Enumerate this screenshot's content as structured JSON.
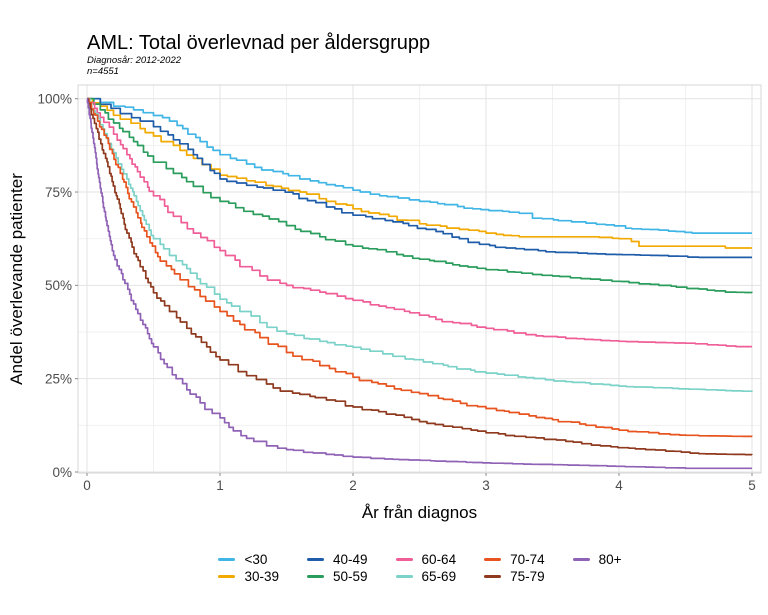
{
  "header": {
    "title": "AML: Total överlevnad per åldersgrupp",
    "subtitle_line1": "Diagnosår: 2012-2022",
    "subtitle_line2": "n=4551"
  },
  "chart_data": {
    "type": "line",
    "subtype": "kaplan-meier-step",
    "title": "AML: Total överlevnad per åldersgrupp",
    "subtitle": "Diagnosår: 2012-2022  n=4551",
    "xlabel": "År från diagnos",
    "ylabel": "Andel överlevande patienter",
    "xlim": [
      0,
      5
    ],
    "ylim": [
      0,
      100
    ],
    "grid": {
      "major": true,
      "minor": true
    },
    "legend_position": "bottom",
    "x_ticks": [
      {
        "value": 0,
        "label": "0"
      },
      {
        "value": 1,
        "label": "1"
      },
      {
        "value": 2,
        "label": "2"
      },
      {
        "value": 3,
        "label": "3"
      },
      {
        "value": 4,
        "label": "4"
      },
      {
        "value": 5,
        "label": "5"
      }
    ],
    "y_ticks": [
      {
        "value": 0,
        "label": "0%"
      },
      {
        "value": 25,
        "label": "25%"
      },
      {
        "value": 50,
        "label": "50%"
      },
      {
        "value": 75,
        "label": "75%"
      },
      {
        "value": 100,
        "label": "100%"
      }
    ],
    "series": [
      {
        "name": "<30",
        "color": "#41B6E6",
        "points": [
          [
            0,
            100
          ],
          [
            0.1,
            99
          ],
          [
            0.2,
            98
          ],
          [
            0.35,
            97
          ],
          [
            0.5,
            95.5
          ],
          [
            0.62,
            94
          ],
          [
            0.72,
            92
          ],
          [
            0.85,
            88.5
          ],
          [
            1,
            85
          ],
          [
            1.2,
            82.5
          ],
          [
            1.4,
            80.5
          ],
          [
            1.6,
            78.5
          ],
          [
            1.8,
            77
          ],
          [
            2,
            75.5
          ],
          [
            2.2,
            74
          ],
          [
            2.5,
            72.5
          ],
          [
            2.9,
            70.5
          ],
          [
            3.25,
            69.3
          ],
          [
            3.35,
            68
          ],
          [
            3.9,
            66.2
          ],
          [
            4.05,
            65.3
          ],
          [
            4.3,
            64.8
          ],
          [
            4.55,
            64
          ],
          [
            5,
            64
          ]
        ]
      },
      {
        "name": "30-39",
        "color": "#F2A900",
        "points": [
          [
            0,
            100
          ],
          [
            0.1,
            98
          ],
          [
            0.25,
            94.5
          ],
          [
            0.4,
            92
          ],
          [
            0.5,
            90
          ],
          [
            0.65,
            87.5
          ],
          [
            0.8,
            84
          ],
          [
            1,
            79.5
          ],
          [
            1.2,
            78
          ],
          [
            1.4,
            76.5
          ],
          [
            1.6,
            75
          ],
          [
            1.8,
            72.5
          ],
          [
            2,
            70.5
          ],
          [
            2.2,
            69
          ],
          [
            2.5,
            66.5
          ],
          [
            2.8,
            65
          ],
          [
            3,
            64
          ],
          [
            3.25,
            63
          ],
          [
            3.8,
            63
          ],
          [
            4,
            62.5
          ],
          [
            4.15,
            60.5
          ],
          [
            4.7,
            60.5
          ],
          [
            4.8,
            60
          ],
          [
            5,
            60
          ]
        ]
      },
      {
        "name": "40-49",
        "color": "#1F5CA9",
        "points": [
          [
            0,
            100
          ],
          [
            0.1,
            98.5
          ],
          [
            0.25,
            96
          ],
          [
            0.4,
            94
          ],
          [
            0.5,
            92.5
          ],
          [
            0.65,
            89
          ],
          [
            0.8,
            85
          ],
          [
            1,
            78.5
          ],
          [
            1.2,
            76.8
          ],
          [
            1.4,
            75.5
          ],
          [
            1.55,
            74.5
          ],
          [
            1.8,
            71
          ],
          [
            2,
            68.8
          ],
          [
            2.3,
            67
          ],
          [
            2.55,
            65
          ],
          [
            2.8,
            62.5
          ],
          [
            2.95,
            61
          ],
          [
            3.15,
            60
          ],
          [
            3.45,
            59
          ],
          [
            3.9,
            58.3
          ],
          [
            4.3,
            58
          ],
          [
            4.6,
            57.5
          ],
          [
            5,
            57.5
          ]
        ]
      },
      {
        "name": "50-59",
        "color": "#2A9D5C",
        "points": [
          [
            0,
            100
          ],
          [
            0.1,
            97
          ],
          [
            0.2,
            93.5
          ],
          [
            0.35,
            88.5
          ],
          [
            0.5,
            83
          ],
          [
            0.65,
            80
          ],
          [
            0.8,
            76.5
          ],
          [
            1,
            72.5
          ],
          [
            1.25,
            69
          ],
          [
            1.5,
            66
          ],
          [
            1.75,
            63
          ],
          [
            2,
            60.5
          ],
          [
            2.25,
            59
          ],
          [
            2.5,
            57
          ],
          [
            2.75,
            55.5
          ],
          [
            3,
            54.2
          ],
          [
            3.5,
            52.5
          ],
          [
            3.86,
            51.4
          ],
          [
            4.3,
            50
          ],
          [
            4.8,
            48.2
          ],
          [
            5,
            48
          ]
        ]
      },
      {
        "name": "60-64",
        "color": "#EF5E97",
        "points": [
          [
            0,
            100
          ],
          [
            0.1,
            95
          ],
          [
            0.2,
            90.5
          ],
          [
            0.3,
            85
          ],
          [
            0.4,
            79
          ],
          [
            0.5,
            74
          ],
          [
            0.65,
            68.5
          ],
          [
            0.8,
            64
          ],
          [
            1,
            59.3
          ],
          [
            1.15,
            55
          ],
          [
            1.3,
            52.5
          ],
          [
            1.5,
            50
          ],
          [
            1.75,
            48.2
          ],
          [
            2,
            46
          ],
          [
            2.25,
            44
          ],
          [
            2.5,
            42
          ],
          [
            2.75,
            40
          ],
          [
            3,
            38.5
          ],
          [
            3.3,
            36.8
          ],
          [
            3.6,
            35.8
          ],
          [
            4,
            35
          ],
          [
            4.5,
            34.5
          ],
          [
            4.88,
            33.6
          ],
          [
            5,
            33.6
          ]
        ]
      },
      {
        "name": "65-69",
        "color": "#7BD2C8",
        "points": [
          [
            0,
            100
          ],
          [
            0.1,
            93
          ],
          [
            0.2,
            85.5
          ],
          [
            0.3,
            78.5
          ],
          [
            0.4,
            70
          ],
          [
            0.5,
            62.5
          ],
          [
            0.62,
            58
          ],
          [
            0.75,
            54.5
          ],
          [
            0.9,
            49.5
          ],
          [
            1,
            46.3
          ],
          [
            1.15,
            43
          ],
          [
            1.3,
            40
          ],
          [
            1.5,
            37
          ],
          [
            1.75,
            35
          ],
          [
            2,
            33.4
          ],
          [
            2.3,
            31
          ],
          [
            2.6,
            29
          ],
          [
            3,
            26.5
          ],
          [
            3.3,
            25.3
          ],
          [
            3.6,
            24.2
          ],
          [
            4,
            23
          ],
          [
            4.4,
            22.4
          ],
          [
            4.8,
            21.8
          ],
          [
            5,
            21.5
          ]
        ]
      },
      {
        "name": "70-74",
        "color": "#E8541F",
        "points": [
          [
            0,
            100
          ],
          [
            0.08,
            94
          ],
          [
            0.16,
            88
          ],
          [
            0.25,
            80
          ],
          [
            0.35,
            71
          ],
          [
            0.45,
            63
          ],
          [
            0.55,
            56.5
          ],
          [
            0.7,
            51.5
          ],
          [
            0.85,
            47
          ],
          [
            1,
            43
          ],
          [
            1.15,
            39.5
          ],
          [
            1.3,
            36
          ],
          [
            1.5,
            32
          ],
          [
            1.75,
            28.5
          ],
          [
            2,
            25.4
          ],
          [
            2.25,
            23
          ],
          [
            2.5,
            21
          ],
          [
            2.75,
            19
          ],
          [
            3,
            17
          ],
          [
            3.25,
            15.5
          ],
          [
            3.5,
            14
          ],
          [
            3.75,
            12.5
          ],
          [
            4,
            11.2
          ],
          [
            4.3,
            10.2
          ],
          [
            4.6,
            9.7
          ],
          [
            5,
            9.5
          ]
        ]
      },
      {
        "name": "75-79",
        "color": "#8F3A1E",
        "points": [
          [
            0,
            100
          ],
          [
            0.07,
            92
          ],
          [
            0.14,
            84
          ],
          [
            0.22,
            74
          ],
          [
            0.3,
            64
          ],
          [
            0.4,
            55
          ],
          [
            0.5,
            48
          ],
          [
            0.62,
            43
          ],
          [
            0.75,
            38.5
          ],
          [
            0.9,
            33.5
          ],
          [
            1,
            30
          ],
          [
            1.2,
            25.8
          ],
          [
            1.4,
            22.5
          ],
          [
            1.6,
            20.8
          ],
          [
            1.8,
            19.3
          ],
          [
            2,
            17.4
          ],
          [
            2.25,
            15.5
          ],
          [
            2.5,
            13.5
          ],
          [
            2.75,
            12
          ],
          [
            3,
            10.5
          ],
          [
            3.3,
            9.3
          ],
          [
            3.6,
            8.2
          ],
          [
            3.86,
            7
          ],
          [
            4.2,
            6
          ],
          [
            4.6,
            4.9
          ],
          [
            5,
            4.6
          ]
        ]
      },
      {
        "name": "80+",
        "color": "#8F62B5",
        "points": [
          [
            0,
            100
          ],
          [
            0.05,
            88
          ],
          [
            0.1,
            76
          ],
          [
            0.15,
            66
          ],
          [
            0.2,
            58
          ],
          [
            0.27,
            51.5
          ],
          [
            0.35,
            45
          ],
          [
            0.42,
            39.5
          ],
          [
            0.5,
            33.5
          ],
          [
            0.58,
            29
          ],
          [
            0.67,
            25
          ],
          [
            0.75,
            22
          ],
          [
            0.85,
            18.5
          ],
          [
            1,
            14.5
          ],
          [
            1.1,
            11
          ],
          [
            1.2,
            9
          ],
          [
            1.35,
            7
          ],
          [
            1.5,
            6
          ],
          [
            1.7,
            5.1
          ],
          [
            2,
            4
          ],
          [
            2.3,
            3.4
          ],
          [
            2.7,
            2.8
          ],
          [
            3.2,
            2.2
          ],
          [
            3.7,
            1.8
          ],
          [
            4.2,
            1.3
          ],
          [
            4.5,
            1
          ],
          [
            5,
            1
          ]
        ]
      }
    ]
  }
}
